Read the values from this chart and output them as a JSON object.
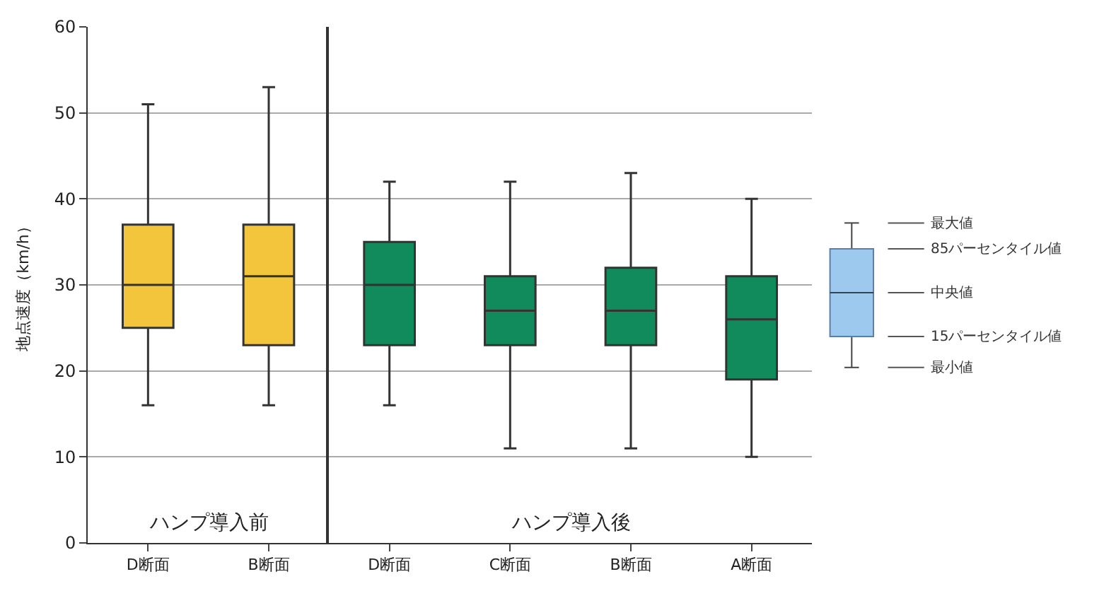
{
  "chart_data": [
    {
      "type": "box",
      "ylabel": "地点速度（km/h）",
      "categories": [
        "D断面",
        "B断面"
      ],
      "series": [
        {
          "color": "#f2c53d",
          "boxes": [
            {
              "low": 16,
              "q1": 25,
              "median": 30,
              "q3": 37,
              "high": 51
            },
            {
              "low": 16,
              "q1": 23,
              "median": 31,
              "q3": 37,
              "high": 53
            }
          ]
        }
      ],
      "ylim": [
        0,
        60
      ],
      "yticks": [
        0,
        10,
        20,
        30,
        40,
        50,
        60
      ],
      "grid": "y",
      "annotations": [
        "ハンプ導入前"
      ]
    },
    {
      "type": "box",
      "categories": [
        "D断面",
        "C断面",
        "B断面",
        "A断面"
      ],
      "series": [
        {
          "color": "#118a5c",
          "boxes": [
            {
              "low": 16,
              "q1": 23,
              "median": 30,
              "q3": 35,
              "high": 42
            },
            {
              "low": 11,
              "q1": 23,
              "median": 27,
              "q3": 31,
              "high": 42
            },
            {
              "low": 11,
              "q1": 23,
              "median": 27,
              "q3": 32,
              "high": 43
            },
            {
              "low": 10,
              "q1": 19,
              "median": 26,
              "q3": 31,
              "high": 40
            }
          ]
        }
      ],
      "ylim": [
        0,
        60
      ],
      "yticks": [
        0,
        10,
        20,
        30,
        40,
        50,
        60
      ],
      "grid": "y",
      "tick_labels": "x",
      "annotations": [
        "ハンプ導入後",
        "最大値",
        "85パーセンタイル値",
        "中央値",
        "15パーセンタイル値",
        "最小値"
      ]
    }
  ]
}
